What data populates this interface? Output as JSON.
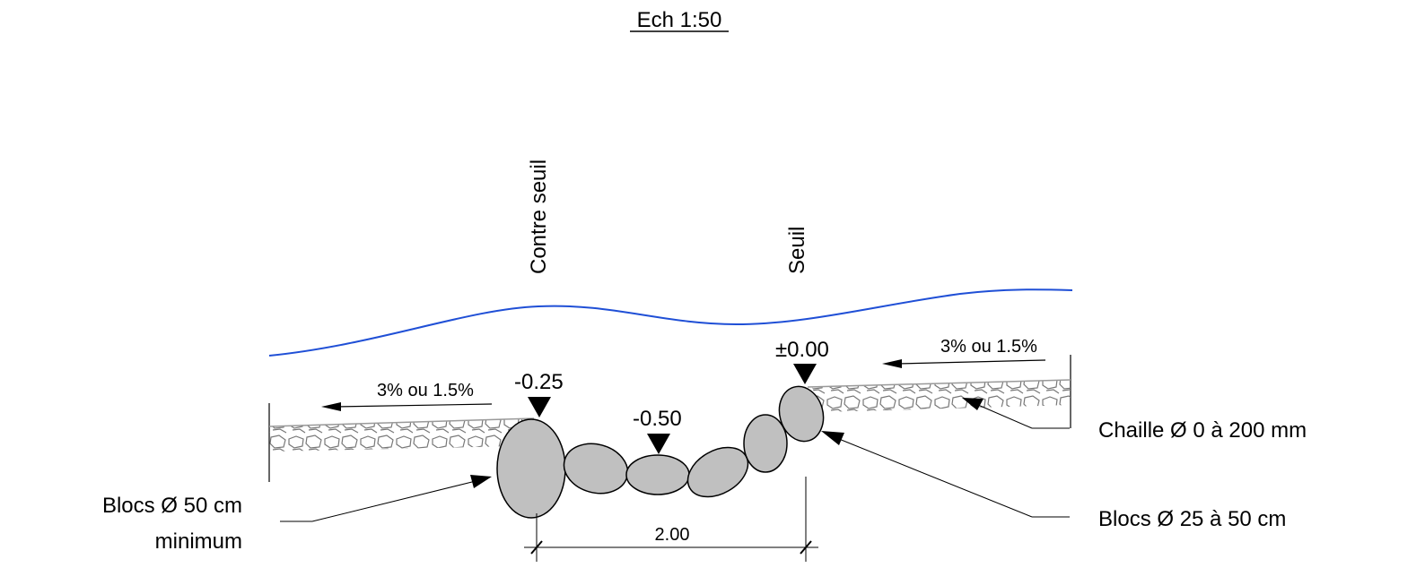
{
  "scale_title": "Ech 1:50",
  "labels": {
    "contre_seuil": "Contre seuil",
    "seuil": "Seuil",
    "blocs_50_line1": "Blocs Ø 50 cm",
    "blocs_50_line2": "minimum",
    "blocs_25_50": "Blocs Ø 25 à 50 cm",
    "chaille": "Chaille Ø 0 à 200 mm"
  },
  "slopes": {
    "left": "3% ou 1.5%",
    "right": "3% ou 1.5%"
  },
  "levels": {
    "contre_seuil": "-0.25",
    "center": "-0.50",
    "seuil": "±0.00"
  },
  "dimension": "2.00",
  "colors": {
    "water": "#1f4fd6",
    "block_fill": "#c0c0c0",
    "line": "#000000",
    "gravel": "#777777"
  }
}
